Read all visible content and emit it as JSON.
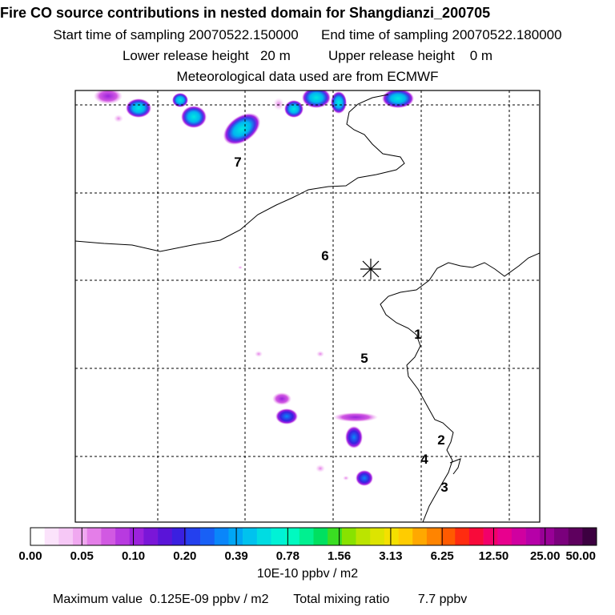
{
  "header": {
    "title": "Fire CO source contributions in nested domain for Shangdianzi_200705",
    "start_label": "Start time of sampling",
    "start_value": "20070522.150000",
    "end_label": "End time of sampling",
    "end_value": "20070522.180000",
    "lower_label": "Lower release height",
    "lower_value": "20 m",
    "upper_label": "Upper release height",
    "upper_value": "0 m",
    "met": "Meteorological data used are from ECMWF"
  },
  "chart_data": {
    "type": "heatmap",
    "title": "Fire CO source contributions in nested domain for Shangdianzi_200705",
    "grid": true,
    "region_labels": [
      "7",
      "6",
      "5",
      "1",
      "2",
      "4",
      "3"
    ],
    "receptor_marker": "asterisk",
    "colorbar": {
      "tick_labels": [
        "0.00",
        "0.05",
        "0.10",
        "0.20",
        "0.39",
        "0.78",
        "1.56",
        "3.13",
        "6.25",
        "12.50",
        "25.00",
        "50.00"
      ],
      "colors": [
        "#ffffff",
        "#fbe3fb",
        "#f6c8f6",
        "#f0a8f0",
        "#e47ee8",
        "#d159e2",
        "#b83ae0",
        "#9c22dc",
        "#7a16d8",
        "#5a14d8",
        "#3a20e0",
        "#2440ee",
        "#1860f6",
        "#0a86fa",
        "#00a6f5",
        "#00c2ee",
        "#00dce2",
        "#00f2d6",
        "#00fac0",
        "#00f090",
        "#00e060",
        "#3ade22",
        "#88e200",
        "#bbe400",
        "#dde400",
        "#f4e000",
        "#ffcc00",
        "#ffa800",
        "#ff8400",
        "#ff5a00",
        "#ff2c10",
        "#f80a3a",
        "#f2006a",
        "#e8008e",
        "#d000a0",
        "#b600a8",
        "#980096",
        "#7a007c",
        "#5e005e",
        "#3c0040"
      ],
      "unit": "10E-10 ppbv / m2"
    }
  },
  "footer": {
    "max_label": "Maximum value",
    "max_value": "0.125E-09 ppbv / m2",
    "total_label": "Total mixing ratio",
    "total_value": "7.7 ppbv"
  }
}
